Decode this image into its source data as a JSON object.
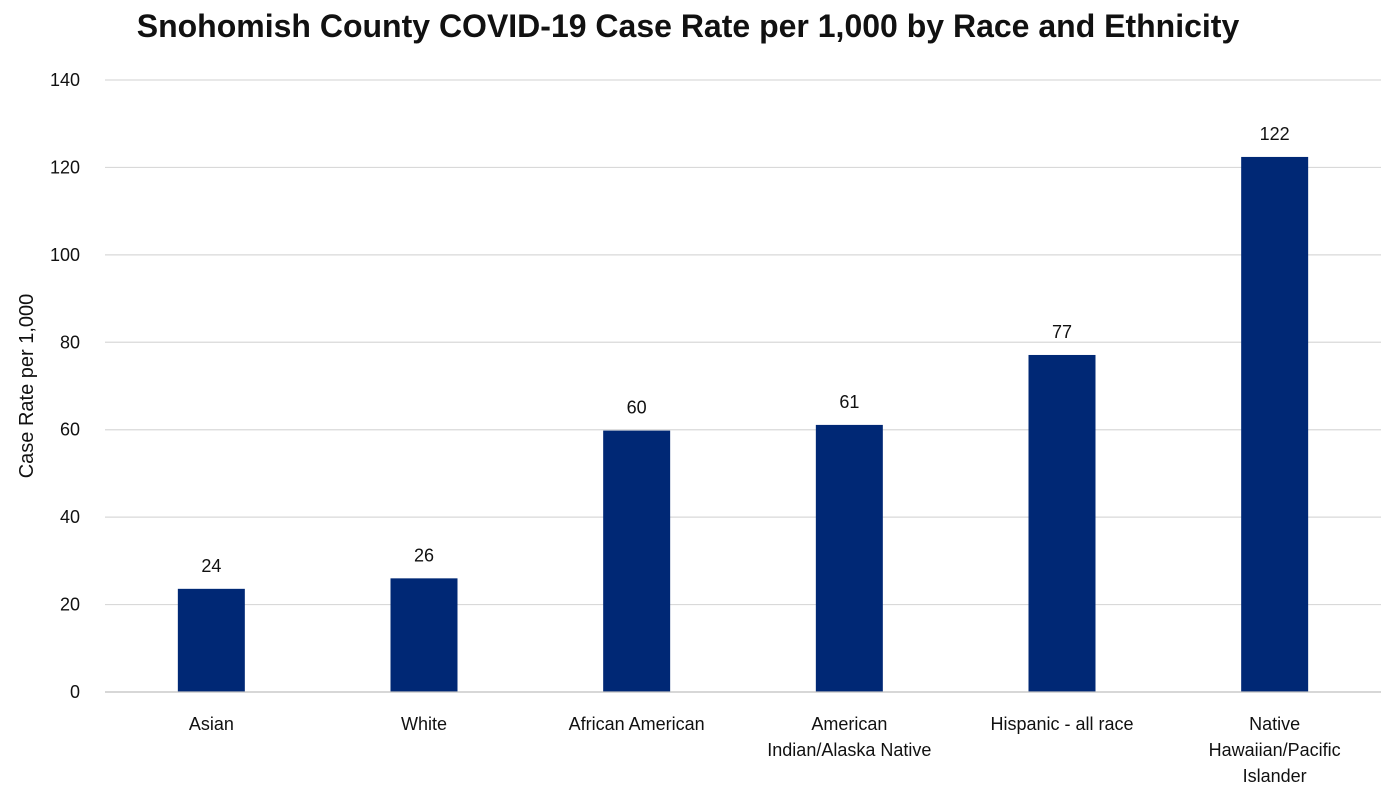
{
  "chart_data": {
    "type": "bar",
    "title": "Snohomish County COVID-19 Case Rate per 1,000 by Race and Ethnicity",
    "xlabel": "",
    "ylabel": "Case Rate per 1,000",
    "ylim": [
      0,
      140
    ],
    "yticks": [
      0,
      20,
      40,
      60,
      80,
      100,
      120,
      140
    ],
    "grid": true,
    "legend": "none",
    "bar_color": "#002875",
    "categories": [
      [
        "Asian"
      ],
      [
        "White"
      ],
      [
        "African American"
      ],
      [
        "American",
        "Indian/Alaska Native"
      ],
      [
        "Hispanic - all race"
      ],
      [
        "Native",
        "Hawaiian/Pacific",
        "Islander"
      ]
    ],
    "values": [
      23.6,
      26.0,
      59.8,
      61.1,
      77.1,
      122.4
    ],
    "data_labels": [
      "24",
      "26",
      "60",
      "61",
      "77",
      "122"
    ]
  }
}
